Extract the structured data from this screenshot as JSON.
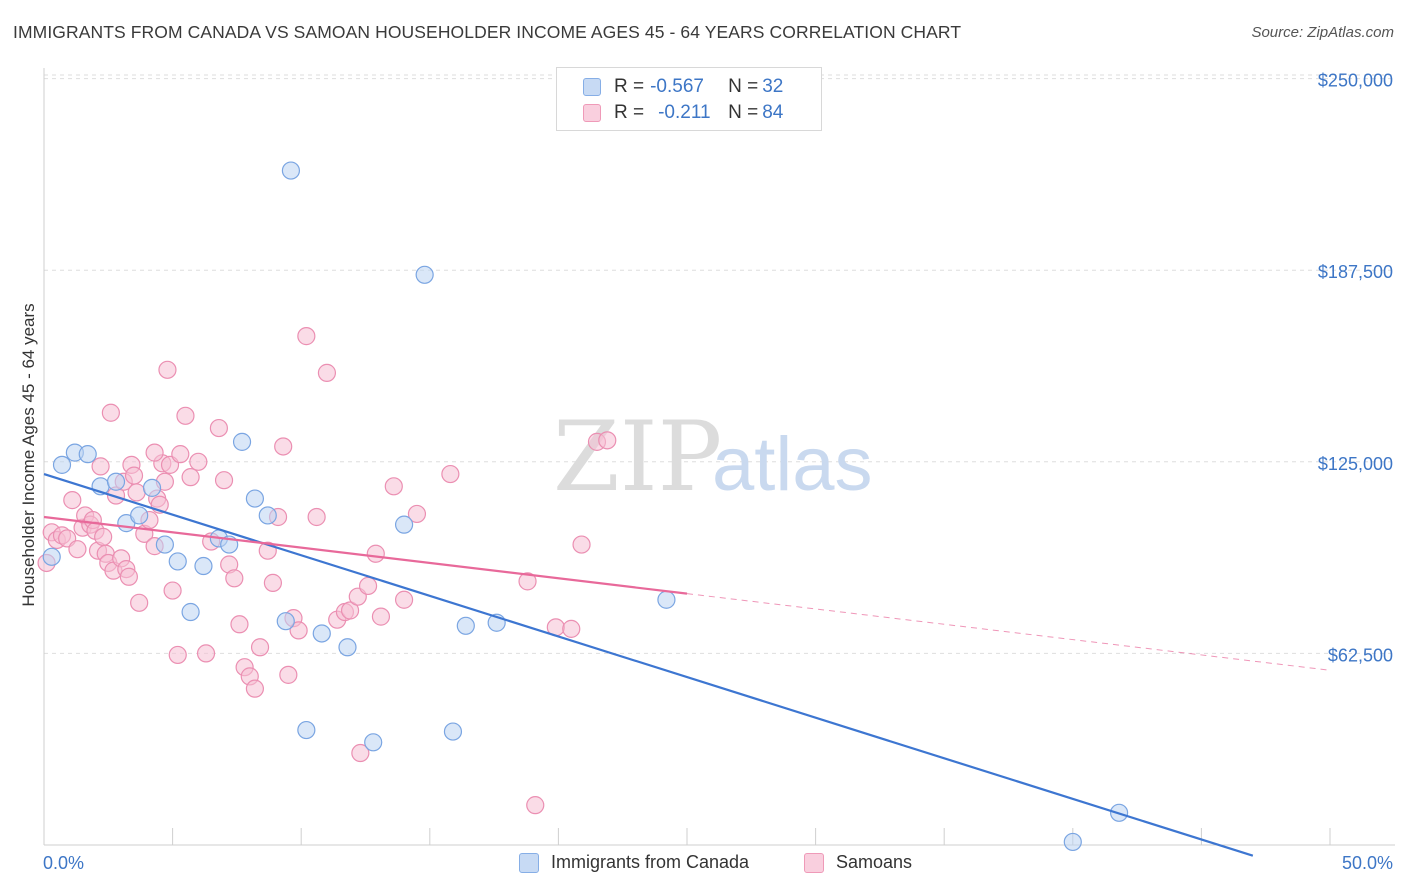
{
  "title": "IMMIGRANTS FROM CANADA VS SAMOAN HOUSEHOLDER INCOME AGES 45 - 64 YEARS CORRELATION CHART",
  "source": "Source: ZipAtlas.com",
  "colors": {
    "blue": "#3d76d1",
    "pink": "#e8699a",
    "blue_fill": "#b9d0f2",
    "pink_fill": "#f6bfd3",
    "axis_text": "#3d76c6"
  },
  "legend": {
    "blue": {
      "r_label": "R = ",
      "r_value": "-0.567",
      "n_label": "N = ",
      "n_value": "32"
    },
    "pink": {
      "r_label": "R = ",
      "r_value": "-0.211",
      "n_label": "N = ",
      "n_value": "84"
    }
  },
  "watermark": {
    "zip": "ZIP",
    "atlas": "atlas"
  },
  "chart_data": {
    "type": "scatter",
    "title": "IMMIGRANTS FROM CANADA VS SAMOAN HOUSEHOLDER INCOME AGES 45 - 64 YEARS CORRELATION CHART",
    "xlabel": "",
    "ylabel": "Householder Income Ages 45 - 64 years",
    "xlim": [
      0,
      50
    ],
    "ylim": [
      0,
      262000
    ],
    "x_tick_labels": [
      "0.0%",
      "50.0%"
    ],
    "y_ticks": [
      62500,
      125000,
      187500,
      250000
    ],
    "y_tick_labels": [
      "$62,500",
      "$125,000",
      "$187,500",
      "$250,000"
    ],
    "grid": true,
    "legend_position": "top-center",
    "series": [
      {
        "name": "Immigrants from Canada",
        "color": "#3d76d1",
        "r": -0.567,
        "n": 32,
        "trend": {
          "x": [
            0,
            47
          ],
          "y": [
            121000,
            -3500
          ],
          "dashed_from": null
        },
        "points": [
          [
            0.3,
            94000
          ],
          [
            0.7,
            124000
          ],
          [
            1.2,
            128000
          ],
          [
            1.7,
            127500
          ],
          [
            2.2,
            117000
          ],
          [
            2.8,
            118500
          ],
          [
            3.2,
            105000
          ],
          [
            3.7,
            107500
          ],
          [
            4.2,
            116500
          ],
          [
            4.7,
            98000
          ],
          [
            5.2,
            92500
          ],
          [
            5.7,
            76000
          ],
          [
            6.2,
            91000
          ],
          [
            6.8,
            100000
          ],
          [
            7.2,
            98000
          ],
          [
            7.7,
            131500
          ],
          [
            8.2,
            113000
          ],
          [
            8.7,
            107500
          ],
          [
            9.4,
            73000
          ],
          [
            9.6,
            220000
          ],
          [
            10.2,
            37500
          ],
          [
            10.8,
            69000
          ],
          [
            11.8,
            64500
          ],
          [
            12.8,
            33500
          ],
          [
            14.0,
            104500
          ],
          [
            14.8,
            186000
          ],
          [
            15.9,
            37000
          ],
          [
            16.4,
            71500
          ],
          [
            17.6,
            72500
          ],
          [
            24.2,
            80000
          ],
          [
            40.0,
            1000
          ],
          [
            41.8,
            10500
          ]
        ]
      },
      {
        "name": "Samoans",
        "color": "#e8699a",
        "r": -0.211,
        "n": 84,
        "trend": {
          "x": [
            0,
            25,
            50
          ],
          "y": [
            107000,
            82000,
            57000
          ],
          "dashed_from": 25
        },
        "points": [
          [
            0.1,
            92000
          ],
          [
            0.3,
            102000
          ],
          [
            0.5,
            99500
          ],
          [
            0.7,
            101000
          ],
          [
            0.9,
            100000
          ],
          [
            1.1,
            112500
          ],
          [
            1.3,
            96500
          ],
          [
            1.5,
            103500
          ],
          [
            1.6,
            107500
          ],
          [
            1.8,
            104500
          ],
          [
            1.9,
            106000
          ],
          [
            2.0,
            102500
          ],
          [
            2.1,
            96000
          ],
          [
            2.2,
            123500
          ],
          [
            2.3,
            100500
          ],
          [
            2.4,
            95000
          ],
          [
            2.5,
            92000
          ],
          [
            2.6,
            141000
          ],
          [
            2.7,
            89500
          ],
          [
            2.8,
            114000
          ],
          [
            3.0,
            93500
          ],
          [
            3.1,
            118500
          ],
          [
            3.2,
            90000
          ],
          [
            3.3,
            87500
          ],
          [
            3.4,
            124000
          ],
          [
            3.5,
            120500
          ],
          [
            3.6,
            115000
          ],
          [
            3.7,
            79000
          ],
          [
            3.9,
            101500
          ],
          [
            4.1,
            106000
          ],
          [
            4.3,
            97500
          ],
          [
            4.4,
            113000
          ],
          [
            4.6,
            124500
          ],
          [
            4.7,
            118500
          ],
          [
            4.9,
            124000
          ],
          [
            4.3,
            128000
          ],
          [
            4.5,
            111000
          ],
          [
            4.8,
            155000
          ],
          [
            5.0,
            83000
          ],
          [
            5.2,
            62000
          ],
          [
            5.3,
            127500
          ],
          [
            5.5,
            140000
          ],
          [
            5.7,
            120000
          ],
          [
            6.0,
            125000
          ],
          [
            6.3,
            62500
          ],
          [
            6.5,
            99000
          ],
          [
            6.8,
            136000
          ],
          [
            7.0,
            119000
          ],
          [
            7.2,
            91500
          ],
          [
            7.4,
            87000
          ],
          [
            7.6,
            72000
          ],
          [
            7.8,
            58000
          ],
          [
            8.0,
            55000
          ],
          [
            8.2,
            51000
          ],
          [
            8.4,
            64500
          ],
          [
            8.7,
            96000
          ],
          [
            8.9,
            85500
          ],
          [
            9.1,
            107000
          ],
          [
            9.3,
            130000
          ],
          [
            9.5,
            55500
          ],
          [
            9.7,
            74000
          ],
          [
            9.9,
            70000
          ],
          [
            10.2,
            166000
          ],
          [
            10.6,
            107000
          ],
          [
            11.0,
            154000
          ],
          [
            11.4,
            73500
          ],
          [
            11.7,
            76000
          ],
          [
            11.9,
            76500
          ],
          [
            12.2,
            81000
          ],
          [
            12.6,
            84500
          ],
          [
            12.9,
            95000
          ],
          [
            13.1,
            74500
          ],
          [
            13.6,
            117000
          ],
          [
            14.0,
            80000
          ],
          [
            14.5,
            108000
          ],
          [
            15.8,
            121000
          ],
          [
            18.8,
            86000
          ],
          [
            19.9,
            71000
          ],
          [
            20.5,
            70500
          ],
          [
            20.9,
            98000
          ],
          [
            21.5,
            131500
          ],
          [
            21.9,
            132000
          ],
          [
            12.3,
            30000
          ],
          [
            19.1,
            13000
          ]
        ]
      }
    ]
  }
}
